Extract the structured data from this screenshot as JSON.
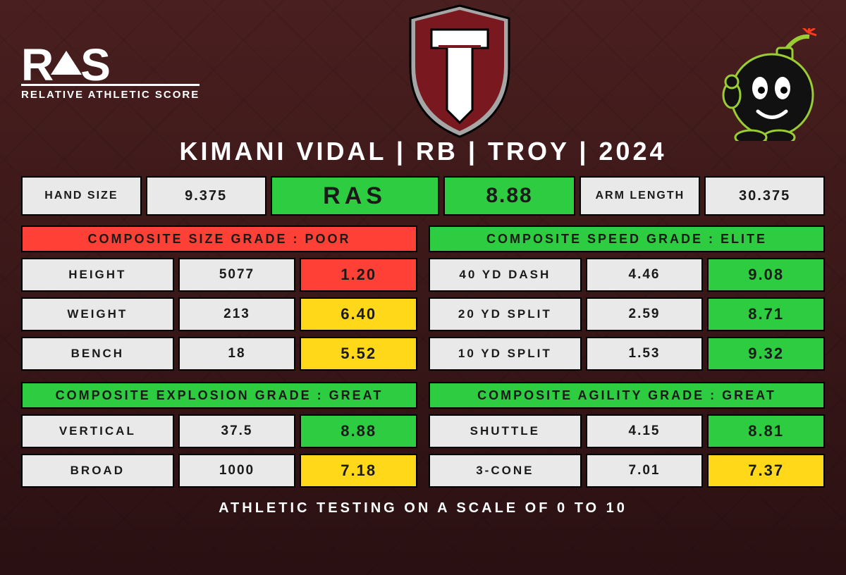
{
  "colors": {
    "green": "#2ecc40",
    "red": "#ff4037",
    "yellow": "#ffd81a",
    "grey": "#e9e9e9",
    "text": "#1a1a1a",
    "bg_dark": "#3a1818",
    "white": "#ffffff"
  },
  "logo": {
    "title_a": "R",
    "title_b": "S",
    "subtitle": "RELATIVE ATHLETIC SCORE"
  },
  "player_line": "KIMANI VIDAL | RB | TROY | 2024",
  "top": {
    "hand_label": "HAND SIZE",
    "hand_value": "9.375",
    "ras_label": "RAS",
    "ras_value": "8.88",
    "arm_label": "ARM LENGTH",
    "arm_value": "30.375"
  },
  "sections": [
    {
      "title": "COMPOSITE SIZE GRADE : POOR",
      "title_bg": "#ff4037",
      "metrics": [
        {
          "name": "HEIGHT",
          "raw": "5077",
          "score": "1.20",
          "score_bg": "#ff4037"
        },
        {
          "name": "WEIGHT",
          "raw": "213",
          "score": "6.40",
          "score_bg": "#ffd81a"
        },
        {
          "name": "BENCH",
          "raw": "18",
          "score": "5.52",
          "score_bg": "#ffd81a"
        }
      ]
    },
    {
      "title": "COMPOSITE SPEED GRADE : ELITE",
      "title_bg": "#2ecc40",
      "metrics": [
        {
          "name": "40 YD DASH",
          "raw": "4.46",
          "score": "9.08",
          "score_bg": "#2ecc40"
        },
        {
          "name": "20 YD SPLIT",
          "raw": "2.59",
          "score": "8.71",
          "score_bg": "#2ecc40"
        },
        {
          "name": "10 YD SPLIT",
          "raw": "1.53",
          "score": "9.32",
          "score_bg": "#2ecc40"
        }
      ]
    },
    {
      "title": "COMPOSITE EXPLOSION GRADE : GREAT",
      "title_bg": "#2ecc40",
      "metrics": [
        {
          "name": "VERTICAL",
          "raw": "37.5",
          "score": "8.88",
          "score_bg": "#2ecc40"
        },
        {
          "name": "BROAD",
          "raw": "1000",
          "score": "7.18",
          "score_bg": "#ffd81a"
        }
      ]
    },
    {
      "title": "COMPOSITE AGILITY GRADE : GREAT",
      "title_bg": "#2ecc40",
      "metrics": [
        {
          "name": "SHUTTLE",
          "raw": "4.15",
          "score": "8.81",
          "score_bg": "#2ecc40"
        },
        {
          "name": "3-CONE",
          "raw": "7.01",
          "score": "7.37",
          "score_bg": "#ffd81a"
        }
      ]
    }
  ],
  "footer": "ATHLETIC TESTING ON A SCALE OF 0 TO 10"
}
